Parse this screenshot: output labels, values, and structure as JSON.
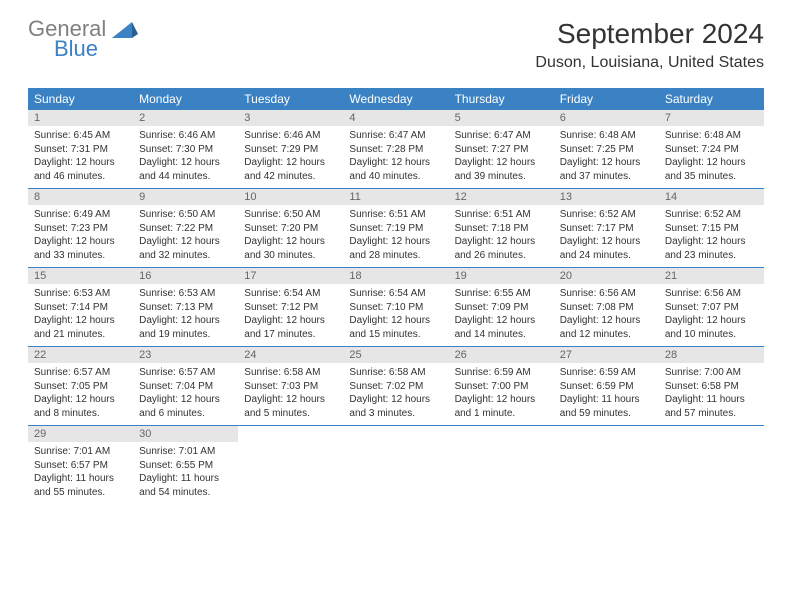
{
  "logo": {
    "text1": "General",
    "text2": "Blue"
  },
  "title": "September 2024",
  "location": "Duson, Louisiana, United States",
  "dayNames": [
    "Sunday",
    "Monday",
    "Tuesday",
    "Wednesday",
    "Thursday",
    "Friday",
    "Saturday"
  ],
  "colors": {
    "headerBar": "#3b82c4",
    "dayNumBg": "#e6e6e6",
    "rowBorder": "#3b82c4",
    "logoGray": "#808080",
    "logoBlue": "#3b82c4",
    "text": "#333333"
  },
  "weeks": [
    [
      {
        "n": "1",
        "sr": "6:45 AM",
        "ss": "7:31 PM",
        "dl": "12 hours and 46 minutes."
      },
      {
        "n": "2",
        "sr": "6:46 AM",
        "ss": "7:30 PM",
        "dl": "12 hours and 44 minutes."
      },
      {
        "n": "3",
        "sr": "6:46 AM",
        "ss": "7:29 PM",
        "dl": "12 hours and 42 minutes."
      },
      {
        "n": "4",
        "sr": "6:47 AM",
        "ss": "7:28 PM",
        "dl": "12 hours and 40 minutes."
      },
      {
        "n": "5",
        "sr": "6:47 AM",
        "ss": "7:27 PM",
        "dl": "12 hours and 39 minutes."
      },
      {
        "n": "6",
        "sr": "6:48 AM",
        "ss": "7:25 PM",
        "dl": "12 hours and 37 minutes."
      },
      {
        "n": "7",
        "sr": "6:48 AM",
        "ss": "7:24 PM",
        "dl": "12 hours and 35 minutes."
      }
    ],
    [
      {
        "n": "8",
        "sr": "6:49 AM",
        "ss": "7:23 PM",
        "dl": "12 hours and 33 minutes."
      },
      {
        "n": "9",
        "sr": "6:50 AM",
        "ss": "7:22 PM",
        "dl": "12 hours and 32 minutes."
      },
      {
        "n": "10",
        "sr": "6:50 AM",
        "ss": "7:20 PM",
        "dl": "12 hours and 30 minutes."
      },
      {
        "n": "11",
        "sr": "6:51 AM",
        "ss": "7:19 PM",
        "dl": "12 hours and 28 minutes."
      },
      {
        "n": "12",
        "sr": "6:51 AM",
        "ss": "7:18 PM",
        "dl": "12 hours and 26 minutes."
      },
      {
        "n": "13",
        "sr": "6:52 AM",
        "ss": "7:17 PM",
        "dl": "12 hours and 24 minutes."
      },
      {
        "n": "14",
        "sr": "6:52 AM",
        "ss": "7:15 PM",
        "dl": "12 hours and 23 minutes."
      }
    ],
    [
      {
        "n": "15",
        "sr": "6:53 AM",
        "ss": "7:14 PM",
        "dl": "12 hours and 21 minutes."
      },
      {
        "n": "16",
        "sr": "6:53 AM",
        "ss": "7:13 PM",
        "dl": "12 hours and 19 minutes."
      },
      {
        "n": "17",
        "sr": "6:54 AM",
        "ss": "7:12 PM",
        "dl": "12 hours and 17 minutes."
      },
      {
        "n": "18",
        "sr": "6:54 AM",
        "ss": "7:10 PM",
        "dl": "12 hours and 15 minutes."
      },
      {
        "n": "19",
        "sr": "6:55 AM",
        "ss": "7:09 PM",
        "dl": "12 hours and 14 minutes."
      },
      {
        "n": "20",
        "sr": "6:56 AM",
        "ss": "7:08 PM",
        "dl": "12 hours and 12 minutes."
      },
      {
        "n": "21",
        "sr": "6:56 AM",
        "ss": "7:07 PM",
        "dl": "12 hours and 10 minutes."
      }
    ],
    [
      {
        "n": "22",
        "sr": "6:57 AM",
        "ss": "7:05 PM",
        "dl": "12 hours and 8 minutes."
      },
      {
        "n": "23",
        "sr": "6:57 AM",
        "ss": "7:04 PM",
        "dl": "12 hours and 6 minutes."
      },
      {
        "n": "24",
        "sr": "6:58 AM",
        "ss": "7:03 PM",
        "dl": "12 hours and 5 minutes."
      },
      {
        "n": "25",
        "sr": "6:58 AM",
        "ss": "7:02 PM",
        "dl": "12 hours and 3 minutes."
      },
      {
        "n": "26",
        "sr": "6:59 AM",
        "ss": "7:00 PM",
        "dl": "12 hours and 1 minute."
      },
      {
        "n": "27",
        "sr": "6:59 AM",
        "ss": "6:59 PM",
        "dl": "11 hours and 59 minutes."
      },
      {
        "n": "28",
        "sr": "7:00 AM",
        "ss": "6:58 PM",
        "dl": "11 hours and 57 minutes."
      }
    ],
    [
      {
        "n": "29",
        "sr": "7:01 AM",
        "ss": "6:57 PM",
        "dl": "11 hours and 55 minutes."
      },
      {
        "n": "30",
        "sr": "7:01 AM",
        "ss": "6:55 PM",
        "dl": "11 hours and 54 minutes."
      },
      null,
      null,
      null,
      null,
      null
    ]
  ],
  "labels": {
    "sunrise": "Sunrise:",
    "sunset": "Sunset:",
    "daylight": "Daylight:"
  }
}
